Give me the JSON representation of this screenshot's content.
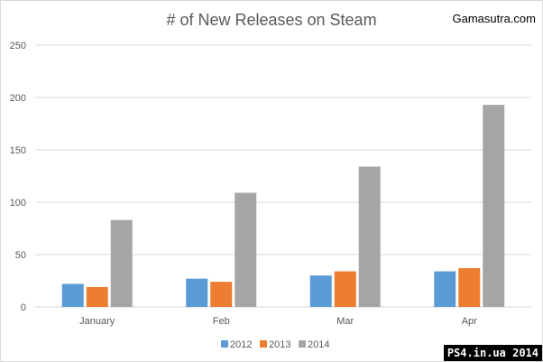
{
  "chart_data": {
    "type": "bar",
    "title": "# of New Releases on Steam",
    "source": "Gamasutra.com",
    "categories": [
      "January",
      "Feb",
      "Mar",
      "Apr"
    ],
    "series": [
      {
        "name": "2012",
        "color": "#5b9bd5",
        "values": [
          22,
          27,
          30,
          34
        ]
      },
      {
        "name": "2013",
        "color": "#ed7d31",
        "values": [
          19,
          24,
          34,
          37
        ]
      },
      {
        "name": "2014",
        "color": "#a5a5a5",
        "values": [
          83,
          109,
          134,
          193
        ]
      }
    ],
    "ylim": [
      0,
      250
    ],
    "yticks": [
      0,
      50,
      100,
      150,
      200,
      250
    ],
    "grid": true,
    "legend": "bottom"
  },
  "watermark": "PS4.in.ua  2014"
}
